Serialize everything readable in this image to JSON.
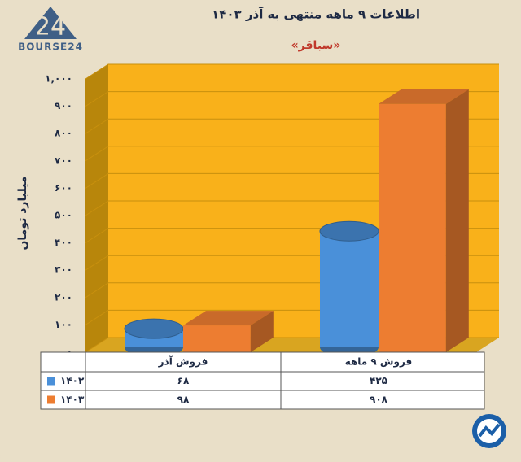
{
  "logo": {
    "mark": "24",
    "name": "BOURSE24"
  },
  "chart_data": {
    "type": "bar3d",
    "title": "اطلاعات ۹ ماهه منتهی به آذر ۱۴۰۳",
    "subtitle": "«سباقر»",
    "y_label": "میلیارد تومان",
    "categories": [
      "فروش آذر",
      "فروش ۹ ماهه"
    ],
    "series": [
      {
        "name": "۱۴۰۲",
        "color": "#4a90d9",
        "values": [
          68,
          425
        ],
        "value_labels": [
          "۶۸",
          "۴۲۵"
        ]
      },
      {
        "name": "۱۴۰۳",
        "color": "#ed7d31",
        "values": [
          98,
          908
        ],
        "value_labels": [
          "۹۸",
          "۹۰۸"
        ]
      }
    ],
    "ylim": [
      0,
      1000
    ],
    "yticks": [
      {
        "value": 0,
        "label": "۰"
      },
      {
        "value": 100,
        "label": "۱۰۰"
      },
      {
        "value": 200,
        "label": "۲۰۰"
      },
      {
        "value": 300,
        "label": "۳۰۰"
      },
      {
        "value": 400,
        "label": "۴۰۰"
      },
      {
        "value": 500,
        "label": "۵۰۰"
      },
      {
        "value": 600,
        "label": "۶۰۰"
      },
      {
        "value": 700,
        "label": "۷۰۰"
      },
      {
        "value": 800,
        "label": "۸۰۰"
      },
      {
        "value": 900,
        "label": "۹۰۰"
      },
      {
        "value": 1000,
        "label": "۱,۰۰۰"
      }
    ],
    "grid": true
  }
}
